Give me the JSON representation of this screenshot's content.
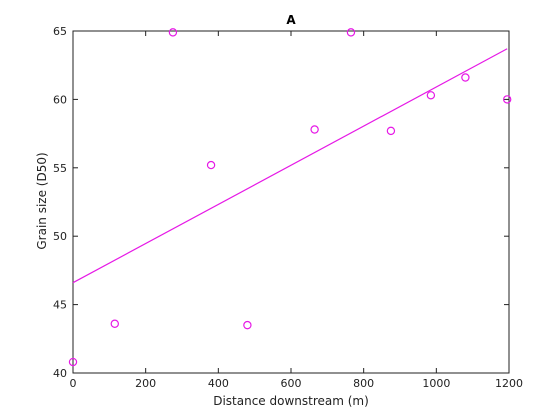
{
  "chart_data": {
    "type": "scatter",
    "title": "A",
    "xlabel": "Distance downstream (m)",
    "ylabel": "Grain size (D50)",
    "xlim": [
      0,
      1200
    ],
    "ylim": [
      40,
      65
    ],
    "xticks": [
      0,
      200,
      400,
      600,
      800,
      1000,
      1200
    ],
    "yticks": [
      40,
      45,
      50,
      55,
      60,
      65
    ],
    "grid": false,
    "legend": "none",
    "color": "#e619e6",
    "series": [
      {
        "type": "scatter",
        "marker": "open-circle",
        "x": [
          0,
          115,
          275,
          380,
          480,
          665,
          765,
          875,
          985,
          1080,
          1195
        ],
        "y": [
          40.8,
          43.6,
          64.9,
          55.2,
          43.5,
          57.8,
          64.9,
          57.7,
          60.3,
          61.6,
          60.0
        ]
      },
      {
        "type": "line",
        "x": [
          0,
          1195
        ],
        "y": [
          46.6,
          63.7
        ]
      }
    ]
  }
}
